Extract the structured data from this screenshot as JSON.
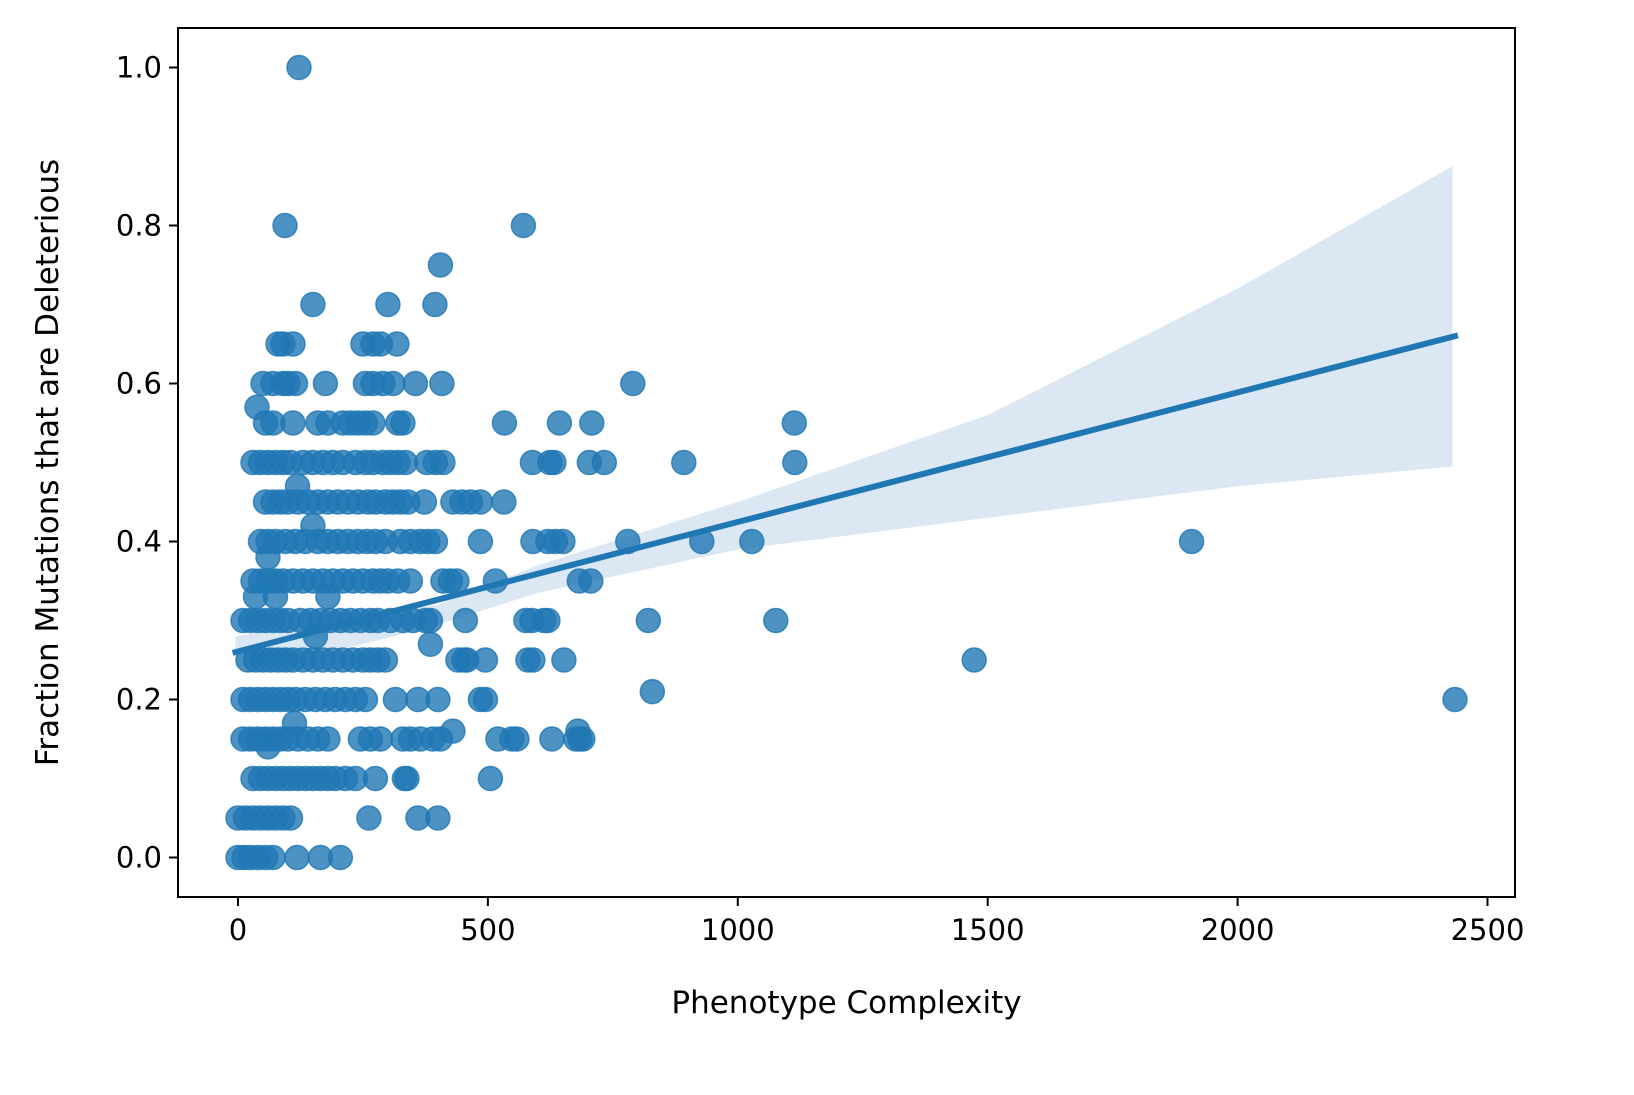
{
  "chart_data": {
    "type": "scatter",
    "title": "",
    "xlabel": "Phenotype Complexity",
    "ylabel": "Fraction Mutations that are Deleterious",
    "xlim": [
      -120,
      2555
    ],
    "ylim": [
      -0.05,
      1.05
    ],
    "xticks": [
      0,
      500,
      1000,
      1500,
      2000,
      2500
    ],
    "xtick_labels": [
      "0",
      "500",
      "1000",
      "1500",
      "2000",
      "2500"
    ],
    "yticks": [
      0.0,
      0.2,
      0.4,
      0.6,
      0.8,
      1.0
    ],
    "ytick_labels": [
      "0.0",
      "0.2",
      "0.4",
      "0.6",
      "0.8",
      "1.0"
    ],
    "grid": false,
    "legend": "none",
    "colors": {
      "points": "#1f77b4",
      "line": "#1f77b4",
      "band": "#dbe7f3"
    },
    "series": [
      {
        "type": "scatter",
        "points": [
          [
            122,
            1.0
          ],
          [
            94,
            0.8
          ],
          [
            571,
            0.8
          ],
          [
            405,
            0.75
          ],
          [
            150,
            0.7
          ],
          [
            300,
            0.7
          ],
          [
            394,
            0.7
          ],
          [
            80,
            0.65
          ],
          [
            90,
            0.65
          ],
          [
            110,
            0.65
          ],
          [
            250,
            0.65
          ],
          [
            270,
            0.65
          ],
          [
            285,
            0.65
          ],
          [
            318,
            0.65
          ],
          [
            50,
            0.6
          ],
          [
            70,
            0.6
          ],
          [
            90,
            0.6
          ],
          [
            100,
            0.6
          ],
          [
            115,
            0.6
          ],
          [
            175,
            0.6
          ],
          [
            255,
            0.6
          ],
          [
            270,
            0.6
          ],
          [
            290,
            0.6
          ],
          [
            310,
            0.6
          ],
          [
            355,
            0.6
          ],
          [
            408,
            0.6
          ],
          [
            790,
            0.6
          ],
          [
            38,
            0.57
          ],
          [
            55,
            0.55
          ],
          [
            70,
            0.55
          ],
          [
            110,
            0.55
          ],
          [
            160,
            0.55
          ],
          [
            180,
            0.55
          ],
          [
            210,
            0.55
          ],
          [
            225,
            0.55
          ],
          [
            240,
            0.55
          ],
          [
            255,
            0.55
          ],
          [
            270,
            0.55
          ],
          [
            320,
            0.55
          ],
          [
            330,
            0.55
          ],
          [
            533,
            0.55
          ],
          [
            643,
            0.55
          ],
          [
            708,
            0.55
          ],
          [
            1113,
            0.55
          ],
          [
            30,
            0.5
          ],
          [
            45,
            0.5
          ],
          [
            60,
            0.5
          ],
          [
            75,
            0.5
          ],
          [
            90,
            0.5
          ],
          [
            105,
            0.5
          ],
          [
            130,
            0.5
          ],
          [
            150,
            0.5
          ],
          [
            170,
            0.5
          ],
          [
            190,
            0.5
          ],
          [
            210,
            0.5
          ],
          [
            235,
            0.5
          ],
          [
            255,
            0.5
          ],
          [
            270,
            0.5
          ],
          [
            290,
            0.5
          ],
          [
            305,
            0.5
          ],
          [
            320,
            0.5
          ],
          [
            335,
            0.5
          ],
          [
            378,
            0.5
          ],
          [
            395,
            0.5
          ],
          [
            410,
            0.5
          ],
          [
            589,
            0.5
          ],
          [
            624,
            0.5
          ],
          [
            632,
            0.5
          ],
          [
            703,
            0.5
          ],
          [
            733,
            0.5
          ],
          [
            892,
            0.5
          ],
          [
            1114,
            0.5
          ],
          [
            119,
            0.47
          ],
          [
            55,
            0.45
          ],
          [
            70,
            0.45
          ],
          [
            85,
            0.45
          ],
          [
            100,
            0.45
          ],
          [
            120,
            0.45
          ],
          [
            140,
            0.45
          ],
          [
            160,
            0.45
          ],
          [
            180,
            0.45
          ],
          [
            200,
            0.45
          ],
          [
            220,
            0.45
          ],
          [
            240,
            0.45
          ],
          [
            260,
            0.45
          ],
          [
            275,
            0.45
          ],
          [
            295,
            0.45
          ],
          [
            310,
            0.45
          ],
          [
            325,
            0.45
          ],
          [
            340,
            0.45
          ],
          [
            373,
            0.45
          ],
          [
            430,
            0.45
          ],
          [
            448,
            0.45
          ],
          [
            465,
            0.45
          ],
          [
            485,
            0.45
          ],
          [
            532,
            0.45
          ],
          [
            150,
            0.42
          ],
          [
            45,
            0.4
          ],
          [
            60,
            0.4
          ],
          [
            75,
            0.4
          ],
          [
            95,
            0.4
          ],
          [
            115,
            0.4
          ],
          [
            135,
            0.4
          ],
          [
            160,
            0.4
          ],
          [
            180,
            0.4
          ],
          [
            200,
            0.4
          ],
          [
            220,
            0.4
          ],
          [
            240,
            0.4
          ],
          [
            258,
            0.4
          ],
          [
            275,
            0.4
          ],
          [
            295,
            0.4
          ],
          [
            325,
            0.4
          ],
          [
            345,
            0.4
          ],
          [
            365,
            0.4
          ],
          [
            380,
            0.4
          ],
          [
            395,
            0.4
          ],
          [
            485,
            0.4
          ],
          [
            590,
            0.4
          ],
          [
            620,
            0.4
          ],
          [
            635,
            0.4
          ],
          [
            650,
            0.4
          ],
          [
            780,
            0.4
          ],
          [
            928,
            0.4
          ],
          [
            1028,
            0.4
          ],
          [
            1908,
            0.4
          ],
          [
            60,
            0.38
          ],
          [
            30,
            0.35
          ],
          [
            45,
            0.35
          ],
          [
            60,
            0.35
          ],
          [
            75,
            0.35
          ],
          [
            90,
            0.35
          ],
          [
            110,
            0.35
          ],
          [
            130,
            0.35
          ],
          [
            150,
            0.35
          ],
          [
            170,
            0.35
          ],
          [
            190,
            0.35
          ],
          [
            210,
            0.35
          ],
          [
            230,
            0.35
          ],
          [
            250,
            0.35
          ],
          [
            270,
            0.35
          ],
          [
            285,
            0.35
          ],
          [
            300,
            0.35
          ],
          [
            320,
            0.35
          ],
          [
            345,
            0.35
          ],
          [
            410,
            0.35
          ],
          [
            425,
            0.35
          ],
          [
            438,
            0.35
          ],
          [
            515,
            0.35
          ],
          [
            683,
            0.35
          ],
          [
            706,
            0.35
          ],
          [
            35,
            0.33
          ],
          [
            75,
            0.33
          ],
          [
            180,
            0.33
          ],
          [
            10,
            0.3
          ],
          [
            25,
            0.3
          ],
          [
            40,
            0.3
          ],
          [
            55,
            0.3
          ],
          [
            70,
            0.3
          ],
          [
            85,
            0.3
          ],
          [
            100,
            0.3
          ],
          [
            125,
            0.3
          ],
          [
            145,
            0.3
          ],
          [
            165,
            0.3
          ],
          [
            185,
            0.3
          ],
          [
            205,
            0.3
          ],
          [
            225,
            0.3
          ],
          [
            245,
            0.3
          ],
          [
            265,
            0.3
          ],
          [
            280,
            0.3
          ],
          [
            305,
            0.3
          ],
          [
            330,
            0.3
          ],
          [
            350,
            0.3
          ],
          [
            375,
            0.3
          ],
          [
            385,
            0.3
          ],
          [
            455,
            0.3
          ],
          [
            576,
            0.3
          ],
          [
            588,
            0.3
          ],
          [
            612,
            0.3
          ],
          [
            620,
            0.3
          ],
          [
            821,
            0.3
          ],
          [
            1076,
            0.3
          ],
          [
            155,
            0.28
          ],
          [
            385,
            0.27
          ],
          [
            20,
            0.25
          ],
          [
            35,
            0.25
          ],
          [
            50,
            0.25
          ],
          [
            65,
            0.25
          ],
          [
            80,
            0.25
          ],
          [
            95,
            0.25
          ],
          [
            110,
            0.25
          ],
          [
            130,
            0.25
          ],
          [
            150,
            0.25
          ],
          [
            170,
            0.25
          ],
          [
            190,
            0.25
          ],
          [
            210,
            0.25
          ],
          [
            230,
            0.25
          ],
          [
            250,
            0.25
          ],
          [
            265,
            0.25
          ],
          [
            280,
            0.25
          ],
          [
            295,
            0.25
          ],
          [
            440,
            0.25
          ],
          [
            452,
            0.25
          ],
          [
            458,
            0.25
          ],
          [
            495,
            0.25
          ],
          [
            580,
            0.25
          ],
          [
            590,
            0.25
          ],
          [
            652,
            0.25
          ],
          [
            1473,
            0.25
          ],
          [
            10,
            0.2
          ],
          [
            25,
            0.2
          ],
          [
            40,
            0.2
          ],
          [
            55,
            0.2
          ],
          [
            70,
            0.2
          ],
          [
            85,
            0.2
          ],
          [
            100,
            0.2
          ],
          [
            115,
            0.2
          ],
          [
            135,
            0.2
          ],
          [
            155,
            0.2
          ],
          [
            175,
            0.2
          ],
          [
            195,
            0.2
          ],
          [
            215,
            0.2
          ],
          [
            235,
            0.2
          ],
          [
            255,
            0.2
          ],
          [
            315,
            0.2
          ],
          [
            360,
            0.2
          ],
          [
            400,
            0.2
          ],
          [
            485,
            0.2
          ],
          [
            495,
            0.2
          ],
          [
            2435,
            0.2
          ],
          [
            829,
            0.21
          ],
          [
            113,
            0.17
          ],
          [
            10,
            0.15
          ],
          [
            25,
            0.15
          ],
          [
            40,
            0.15
          ],
          [
            55,
            0.15
          ],
          [
            70,
            0.15
          ],
          [
            85,
            0.15
          ],
          [
            100,
            0.15
          ],
          [
            120,
            0.15
          ],
          [
            140,
            0.15
          ],
          [
            160,
            0.15
          ],
          [
            180,
            0.15
          ],
          [
            245,
            0.15
          ],
          [
            265,
            0.15
          ],
          [
            285,
            0.15
          ],
          [
            330,
            0.15
          ],
          [
            345,
            0.15
          ],
          [
            365,
            0.15
          ],
          [
            390,
            0.15
          ],
          [
            405,
            0.15
          ],
          [
            520,
            0.15
          ],
          [
            548,
            0.15
          ],
          [
            558,
            0.15
          ],
          [
            628,
            0.15
          ],
          [
            676,
            0.15
          ],
          [
            684,
            0.15
          ],
          [
            690,
            0.15
          ],
          [
            60,
            0.14
          ],
          [
            430,
            0.16
          ],
          [
            680,
            0.16
          ],
          [
            30,
            0.1
          ],
          [
            45,
            0.1
          ],
          [
            60,
            0.1
          ],
          [
            75,
            0.1
          ],
          [
            90,
            0.1
          ],
          [
            105,
            0.1
          ],
          [
            120,
            0.1
          ],
          [
            135,
            0.1
          ],
          [
            150,
            0.1
          ],
          [
            165,
            0.1
          ],
          [
            180,
            0.1
          ],
          [
            195,
            0.1
          ],
          [
            215,
            0.1
          ],
          [
            235,
            0.1
          ],
          [
            275,
            0.1
          ],
          [
            333,
            0.1
          ],
          [
            338,
            0.1
          ],
          [
            505,
            0.1
          ],
          [
            0,
            0.05
          ],
          [
            15,
            0.05
          ],
          [
            30,
            0.05
          ],
          [
            45,
            0.05
          ],
          [
            60,
            0.05
          ],
          [
            75,
            0.05
          ],
          [
            90,
            0.05
          ],
          [
            105,
            0.05
          ],
          [
            262,
            0.05
          ],
          [
            360,
            0.05
          ],
          [
            400,
            0.05
          ],
          [
            0,
            0.0
          ],
          [
            12,
            0.0
          ],
          [
            25,
            0.0
          ],
          [
            40,
            0.0
          ],
          [
            55,
            0.0
          ],
          [
            70,
            0.0
          ],
          [
            118,
            0.0
          ],
          [
            165,
            0.0
          ],
          [
            205,
            0.0
          ]
        ]
      },
      {
        "type": "line",
        "points": [
          [
            -5,
            0.26
          ],
          [
            2435,
            0.66
          ]
        ]
      },
      {
        "type": "area",
        "upper": [
          [
            -5,
            0.28
          ],
          [
            250,
            0.305
          ],
          [
            400,
            0.32
          ],
          [
            600,
            0.37
          ],
          [
            1000,
            0.45
          ],
          [
            1500,
            0.56
          ],
          [
            2000,
            0.72
          ],
          [
            2430,
            0.875
          ]
        ],
        "lower": [
          [
            -5,
            0.24
          ],
          [
            250,
            0.27
          ],
          [
            400,
            0.295
          ],
          [
            600,
            0.335
          ],
          [
            1000,
            0.39
          ],
          [
            1500,
            0.43
          ],
          [
            2000,
            0.47
          ],
          [
            2430,
            0.495
          ]
        ]
      }
    ]
  }
}
